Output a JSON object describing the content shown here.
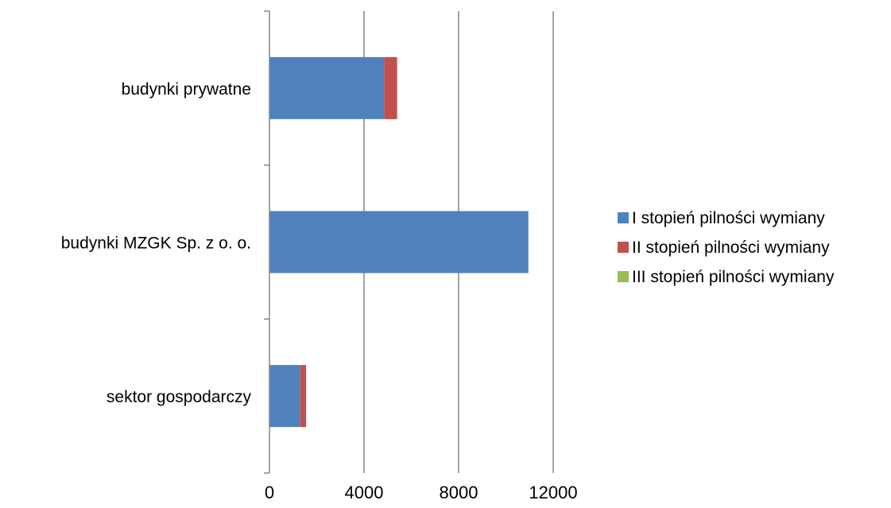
{
  "chart_data": {
    "type": "bar",
    "orientation": "horizontal",
    "stacked": true,
    "title": "",
    "xlabel": "",
    "ylabel": "",
    "categories": [
      "budynki prywatne",
      "budynki MZGK Sp. z o. o.",
      "sektor gospodarczy"
    ],
    "series": [
      {
        "name": "I stopień pilności wymiany",
        "color": "#4f81bd",
        "values": [
          4850,
          10950,
          1300
        ]
      },
      {
        "name": "II stopień pilności wymiany",
        "color": "#c0504d",
        "values": [
          550,
          0,
          250
        ]
      },
      {
        "name": "III stopień pilności wymiany",
        "color": "#9bbb59",
        "values": [
          0,
          0,
          0
        ]
      }
    ],
    "x_ticks": [
      "0",
      "4000",
      "8000",
      "12000"
    ],
    "xlim": [
      0,
      12000
    ],
    "grid": "vertical",
    "legend_position": "right"
  }
}
